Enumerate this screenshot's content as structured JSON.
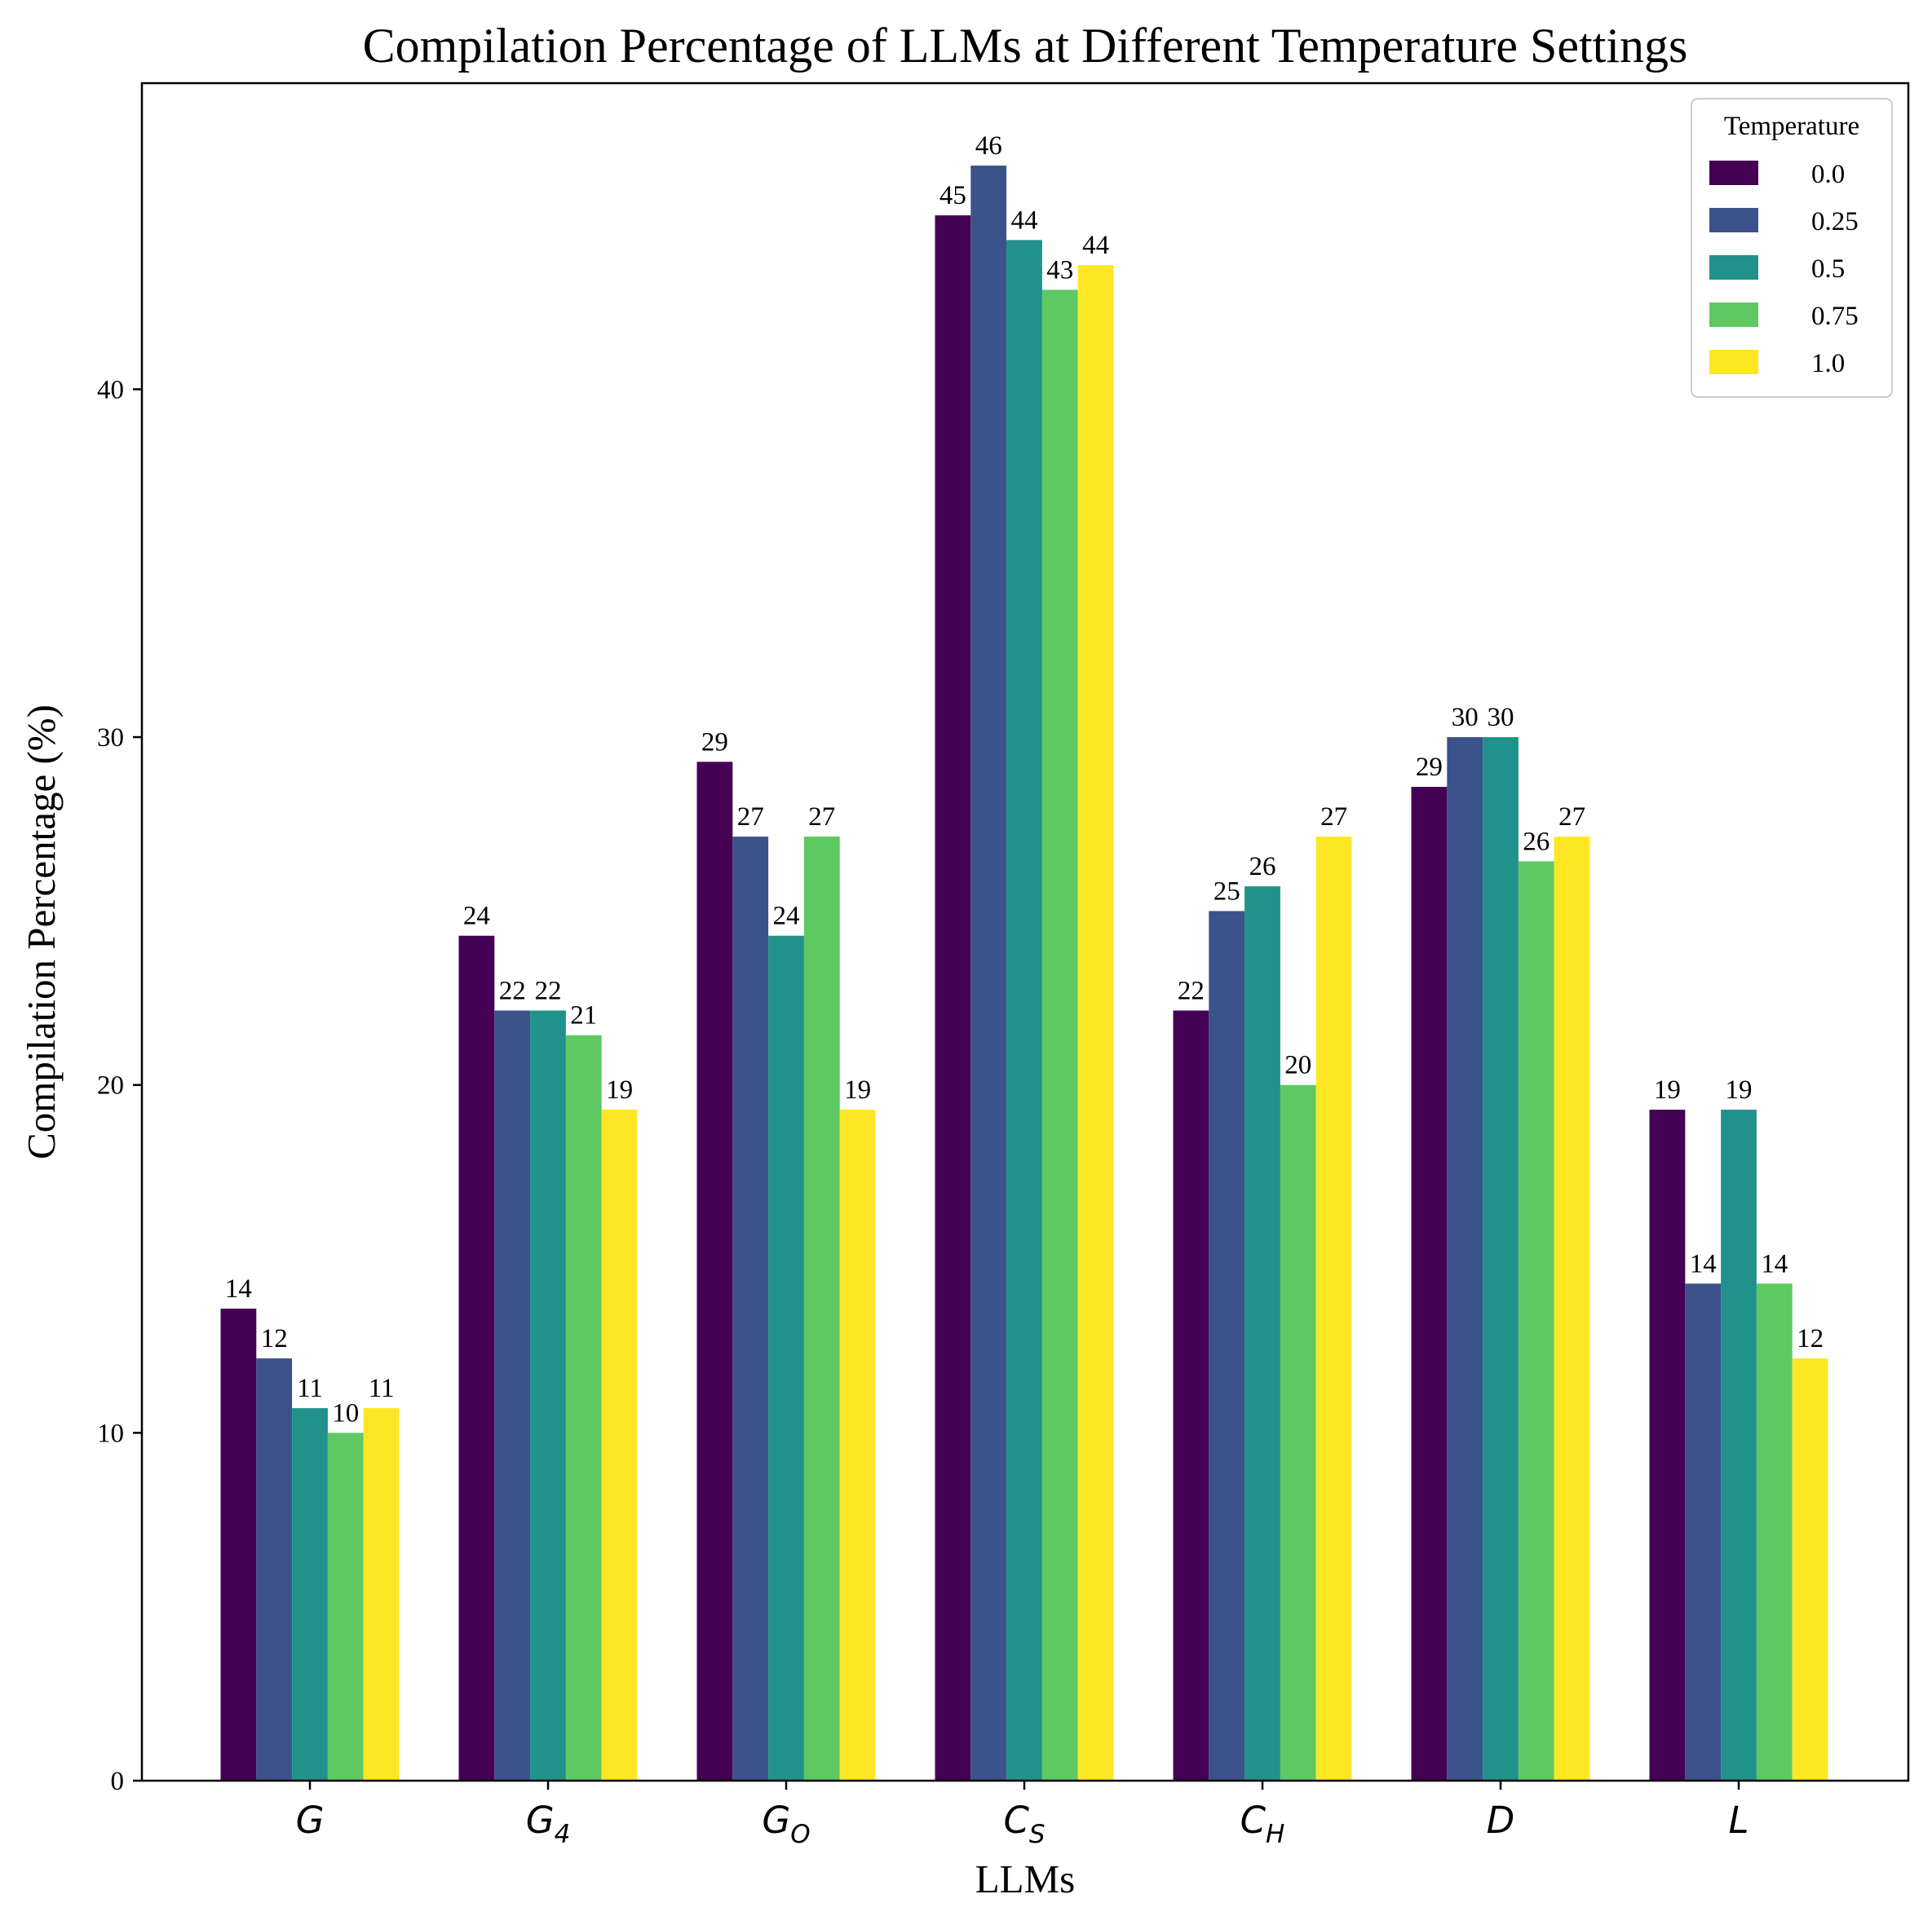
{
  "chart_data": {
    "type": "bar",
    "title": "Compilation Percentage of LLMs at Different Temperature Settings",
    "xlabel": "LLMs",
    "ylabel": "Compilation Percentage (%)",
    "ylim": [
      0,
      48.8
    ],
    "yticks": [
      0,
      10,
      20,
      30,
      40
    ],
    "grid": false,
    "legend_title": "Temperature",
    "legend_position": "top-right",
    "categories": [
      {
        "base": "G",
        "sub": ""
      },
      {
        "base": "G",
        "sub": "4"
      },
      {
        "base": "G",
        "sub": "O"
      },
      {
        "base": "C",
        "sub": "S"
      },
      {
        "base": "C",
        "sub": "H"
      },
      {
        "base": "D",
        "sub": ""
      },
      {
        "base": "L",
        "sub": ""
      }
    ],
    "series": [
      {
        "name": "0.0",
        "color": "#440154",
        "values": [
          13.57,
          24.29,
          29.29,
          45.0,
          22.14,
          28.57,
          19.29
        ],
        "labels": [
          "14",
          "24",
          "29",
          "45",
          "22",
          "29",
          "19"
        ]
      },
      {
        "name": "0.25",
        "color": "#3b528b",
        "values": [
          12.14,
          22.14,
          27.14,
          46.43,
          25.0,
          30.0,
          14.29
        ],
        "labels": [
          "12",
          "22",
          "27",
          "46",
          "25",
          "30",
          "14"
        ]
      },
      {
        "name": "0.5",
        "color": "#21918c",
        "values": [
          10.71,
          22.14,
          24.29,
          44.29,
          25.71,
          30.0,
          19.29
        ],
        "labels": [
          "11",
          "22",
          "24",
          "44",
          "26",
          "30",
          "19"
        ]
      },
      {
        "name": "0.75",
        "color": "#5ec962",
        "values": [
          10.0,
          21.43,
          27.14,
          42.86,
          20.0,
          26.43,
          14.29
        ],
        "labels": [
          "10",
          "21",
          "27",
          "43",
          "20",
          "26",
          "14"
        ]
      },
      {
        "name": "1.0",
        "color": "#fde725",
        "values": [
          10.71,
          19.29,
          19.29,
          43.57,
          27.14,
          27.14,
          12.14
        ],
        "labels": [
          "11",
          "19",
          "19",
          "44",
          "27",
          "27",
          "12"
        ]
      }
    ]
  }
}
